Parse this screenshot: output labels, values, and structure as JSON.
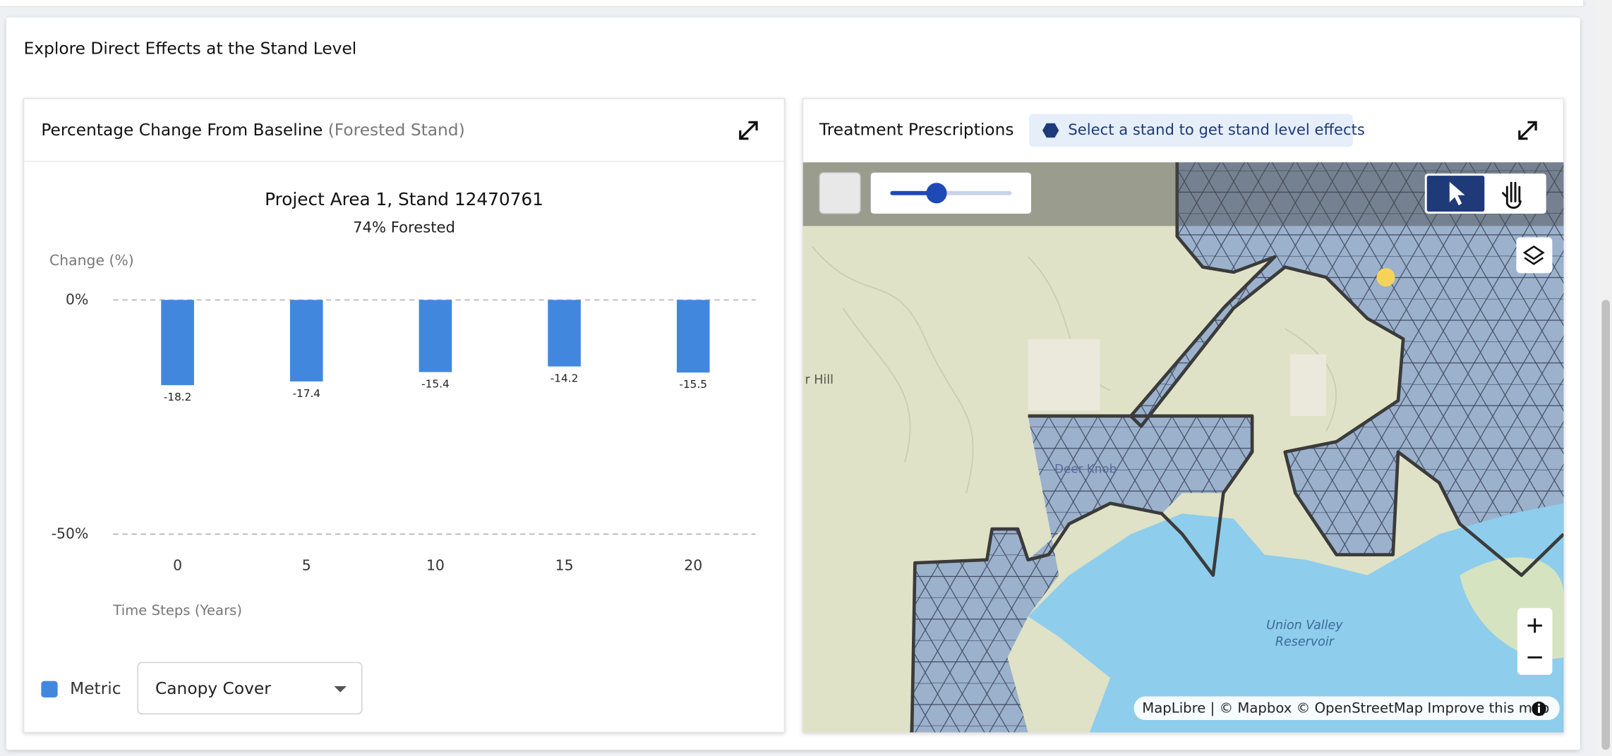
{
  "section_title": "Explore Direct Effects at the Stand Level",
  "chart_panel": {
    "title": "Percentage Change From Baseline",
    "title_note": "(Forested Stand)",
    "legend_label": "Metric",
    "metric_select": "Canopy Cover"
  },
  "chart_data": {
    "type": "bar",
    "title": "Project Area 1, Stand 12470761",
    "subtitle": "74% Forested",
    "y_label": "Change (%)",
    "x_label": "Time Steps (Years)",
    "categories": [
      "0",
      "5",
      "10",
      "15",
      "20"
    ],
    "values": [
      -18.2,
      -17.4,
      -15.4,
      -14.2,
      -15.5
    ],
    "color": "#4287de",
    "ylim": [
      -50,
      0
    ],
    "yticks": [
      {
        "value": 0,
        "label": "0%"
      },
      {
        "value": -50,
        "label": "-50%"
      }
    ],
    "grid": true
  },
  "map_panel": {
    "title": "Treatment Prescriptions",
    "hint": "Select a stand to get stand level effects",
    "place_labels": [
      "r Hill",
      "Deer Knob",
      "Union Valley",
      "Reservoir"
    ],
    "attribution": "MapLibre | © Mapbox © OpenStreetMap Improve this map"
  }
}
